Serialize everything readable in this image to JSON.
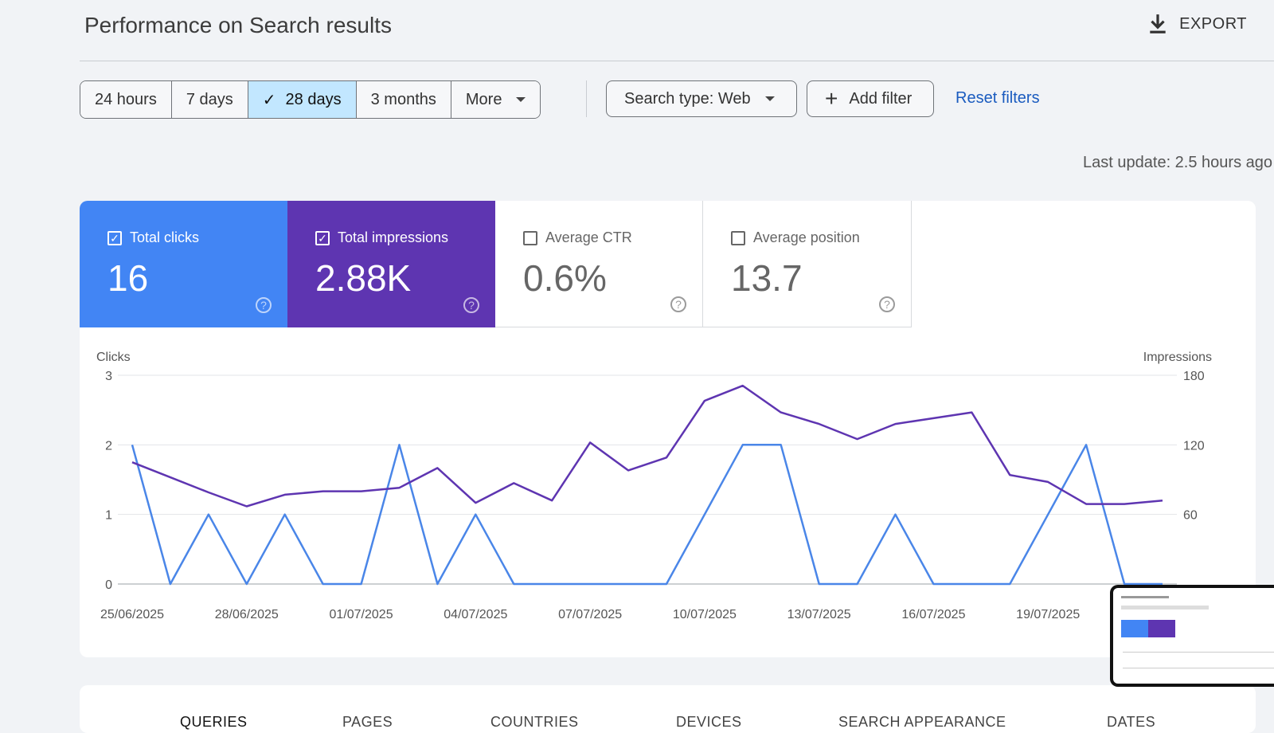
{
  "header": {
    "title": "Performance on Search results",
    "export_label": "EXPORT"
  },
  "filters": {
    "ranges": [
      {
        "label": "24 hours",
        "active": false
      },
      {
        "label": "7 days",
        "active": false
      },
      {
        "label": "28 days",
        "active": true
      },
      {
        "label": "3 months",
        "active": false
      },
      {
        "label": "More",
        "active": false
      }
    ],
    "search_type": "Search type: Web",
    "add_filter": "Add filter",
    "reset": "Reset filters"
  },
  "last_update": "Last update: 2.5 hours ago",
  "metrics": [
    {
      "label": "Total clicks",
      "value": "16",
      "checked": true,
      "color": "#4285f4"
    },
    {
      "label": "Total impressions",
      "value": "2.88K",
      "checked": true,
      "color": "#5e35b1"
    },
    {
      "label": "Average CTR",
      "value": "0.6%",
      "checked": false
    },
    {
      "label": "Average position",
      "value": "13.7",
      "checked": false
    }
  ],
  "chart_data": {
    "type": "line",
    "left_axis_label": "Clicks",
    "right_axis_label": "Impressions",
    "left_ticks": [
      "3",
      "2",
      "1",
      "0"
    ],
    "right_ticks": [
      "180",
      "120",
      "60"
    ],
    "ylim_left": [
      0,
      3
    ],
    "ylim_right": [
      0,
      180
    ],
    "x_tick_labels": [
      "25/06/2025",
      "28/06/2025",
      "01/07/2025",
      "04/07/2025",
      "07/07/2025",
      "10/07/2025",
      "13/07/2025",
      "16/07/2025",
      "19/07/2025"
    ],
    "x": [
      "25/06/2025",
      "26/06/2025",
      "27/06/2025",
      "28/06/2025",
      "29/06/2025",
      "30/06/2025",
      "01/07/2025",
      "02/07/2025",
      "03/07/2025",
      "04/07/2025",
      "05/07/2025",
      "06/07/2025",
      "07/07/2025",
      "08/07/2025",
      "09/07/2025",
      "10/07/2025",
      "11/07/2025",
      "12/07/2025",
      "13/07/2025",
      "14/07/2025",
      "15/07/2025",
      "16/07/2025",
      "17/07/2025",
      "18/07/2025",
      "19/07/2025",
      "20/07/2025",
      "21/07/2025",
      "22/07/2025"
    ],
    "series": [
      {
        "name": "Clicks",
        "axis": "left",
        "color": "#4a86e8",
        "values": [
          2,
          0,
          1,
          0,
          1,
          0,
          0,
          2,
          0,
          1,
          0,
          0,
          0,
          0,
          0,
          1,
          2,
          2,
          0,
          0,
          1,
          0,
          0,
          0,
          1,
          2,
          0,
          0
        ]
      },
      {
        "name": "Impressions",
        "axis": "right",
        "color": "#5e35b1",
        "values": [
          105,
          92,
          79,
          67,
          77,
          80,
          80,
          83,
          100,
          70,
          87,
          72,
          122,
          98,
          109,
          158,
          171,
          148,
          138,
          125,
          138,
          143,
          148,
          94,
          88,
          69,
          69,
          72
        ]
      }
    ],
    "grid": true
  },
  "tabs": [
    "QUERIES",
    "PAGES",
    "COUNTRIES",
    "DEVICES",
    "SEARCH APPEARANCE",
    "DATES"
  ]
}
